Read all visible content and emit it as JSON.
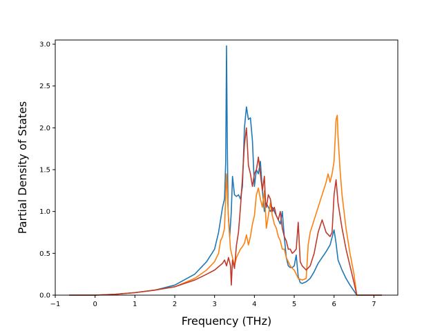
{
  "chart_data": {
    "type": "line",
    "title": "",
    "xlabel": "Frequency (THz)",
    "ylabel": "Partial Density of States",
    "xlim": [
      -1.0,
      7.6
    ],
    "ylim": [
      0.0,
      3.05
    ],
    "grid": false,
    "legend": "none",
    "xticks": [
      -1,
      0,
      1,
      2,
      3,
      4,
      5,
      6,
      7
    ],
    "yticks": [
      0.0,
      0.5,
      1.0,
      1.5,
      2.0,
      2.5,
      3.0
    ],
    "xtick_labels": [
      "−1",
      "0",
      "1",
      "2",
      "3",
      "4",
      "5",
      "6",
      "7"
    ],
    "ytick_labels": [
      "0.0",
      "0.5",
      "1.0",
      "1.5",
      "2.0",
      "2.5",
      "3.0"
    ],
    "series": [
      {
        "color": "#1f77b4",
        "x": [
          -0.65,
          0.0,
          0.5,
          1.0,
          1.5,
          2.0,
          2.5,
          2.8,
          3.0,
          3.1,
          3.2,
          3.25,
          3.28,
          3.3,
          3.32,
          3.34,
          3.38,
          3.42,
          3.45,
          3.5,
          3.55,
          3.6,
          3.65,
          3.7,
          3.75,
          3.8,
          3.85,
          3.9,
          3.95,
          4.0,
          4.05,
          4.1,
          4.15,
          4.2,
          4.25,
          4.3,
          4.35,
          4.4,
          4.45,
          4.5,
          4.55,
          4.6,
          4.65,
          4.7,
          4.75,
          4.8,
          4.85,
          4.9,
          4.95,
          5.0,
          5.05,
          5.1,
          5.15,
          5.2,
          5.3,
          5.4,
          5.5,
          5.6,
          5.7,
          5.8,
          5.9,
          6.0,
          6.05,
          6.1,
          6.2,
          6.3,
          6.4,
          6.5,
          6.57,
          7.2
        ],
        "y": [
          0.0,
          0.0,
          0.01,
          0.03,
          0.06,
          0.12,
          0.25,
          0.4,
          0.55,
          0.75,
          1.05,
          1.15,
          1.6,
          2.98,
          1.8,
          1.0,
          0.7,
          1.0,
          1.42,
          1.2,
          1.18,
          1.2,
          1.15,
          1.3,
          2.0,
          2.25,
          2.1,
          2.12,
          1.85,
          1.3,
          1.5,
          1.45,
          1.6,
          1.25,
          1.0,
          1.1,
          1.05,
          1.0,
          1.05,
          1.0,
          0.95,
          0.9,
          0.85,
          1.0,
          0.7,
          0.45,
          0.35,
          0.33,
          0.33,
          0.35,
          0.48,
          0.22,
          0.15,
          0.14,
          0.16,
          0.2,
          0.28,
          0.38,
          0.45,
          0.52,
          0.6,
          0.78,
          0.62,
          0.42,
          0.3,
          0.2,
          0.12,
          0.05,
          0.0,
          0.0
        ]
      },
      {
        "color": "#ff7f0e",
        "x": [
          -0.65,
          0.0,
          0.5,
          1.0,
          1.5,
          2.0,
          2.5,
          2.8,
          3.0,
          3.1,
          3.15,
          3.2,
          3.25,
          3.3,
          3.35,
          3.4,
          3.45,
          3.5,
          3.55,
          3.6,
          3.65,
          3.7,
          3.75,
          3.8,
          3.85,
          3.9,
          3.95,
          4.0,
          4.05,
          4.1,
          4.15,
          4.2,
          4.25,
          4.3,
          4.35,
          4.4,
          4.45,
          4.5,
          4.55,
          4.6,
          4.65,
          4.7,
          4.75,
          4.8,
          4.85,
          4.9,
          4.95,
          5.0,
          5.05,
          5.1,
          5.2,
          5.3,
          5.35,
          5.4,
          5.5,
          5.6,
          5.7,
          5.8,
          5.85,
          5.9,
          5.95,
          6.0,
          6.03,
          6.05,
          6.08,
          6.1,
          6.15,
          6.2,
          6.3,
          6.4,
          6.5,
          6.57,
          7.2
        ],
        "y": [
          0.0,
          0.0,
          0.01,
          0.03,
          0.06,
          0.1,
          0.2,
          0.3,
          0.4,
          0.5,
          0.65,
          0.7,
          0.8,
          1.45,
          0.9,
          0.55,
          0.45,
          0.35,
          0.45,
          0.5,
          0.55,
          0.58,
          0.62,
          0.72,
          0.6,
          0.7,
          0.85,
          0.95,
          1.2,
          1.28,
          1.15,
          1.05,
          1.25,
          0.8,
          0.95,
          1.1,
          0.95,
          0.85,
          0.8,
          0.7,
          0.65,
          0.55,
          0.55,
          0.45,
          0.4,
          0.35,
          0.32,
          0.3,
          0.25,
          0.2,
          0.18,
          0.2,
          0.6,
          0.75,
          0.9,
          1.05,
          1.2,
          1.35,
          1.45,
          1.35,
          1.45,
          1.6,
          1.9,
          2.1,
          2.15,
          1.9,
          1.5,
          1.2,
          0.8,
          0.5,
          0.25,
          0.0,
          0.0
        ]
      },
      {
        "color": "#c0392b",
        "x": [
          -0.65,
          0.0,
          0.5,
          1.0,
          1.5,
          2.0,
          2.5,
          2.8,
          3.0,
          3.2,
          3.25,
          3.3,
          3.35,
          3.4,
          3.42,
          3.45,
          3.5,
          3.55,
          3.6,
          3.65,
          3.7,
          3.75,
          3.8,
          3.85,
          3.9,
          3.95,
          4.0,
          4.05,
          4.1,
          4.15,
          4.2,
          4.25,
          4.28,
          4.3,
          4.35,
          4.4,
          4.45,
          4.5,
          4.55,
          4.6,
          4.65,
          4.7,
          4.75,
          4.8,
          4.85,
          4.9,
          4.95,
          5.0,
          5.05,
          5.1,
          5.15,
          5.2,
          5.3,
          5.4,
          5.5,
          5.6,
          5.7,
          5.8,
          5.9,
          5.95,
          6.0,
          6.05,
          6.1,
          6.2,
          6.3,
          6.4,
          6.5,
          6.57,
          7.2
        ],
        "y": [
          0.0,
          0.0,
          0.01,
          0.03,
          0.06,
          0.1,
          0.18,
          0.25,
          0.3,
          0.38,
          0.42,
          0.35,
          0.45,
          0.35,
          0.12,
          0.42,
          0.32,
          0.6,
          0.75,
          1.05,
          1.4,
          1.8,
          2.0,
          1.55,
          1.45,
          1.3,
          1.45,
          1.5,
          1.65,
          1.45,
          1.25,
          1.42,
          1.1,
          1.05,
          1.2,
          1.15,
          1.0,
          1.05,
          0.95,
          0.9,
          1.0,
          0.8,
          0.7,
          0.65,
          0.55,
          0.55,
          0.5,
          0.52,
          0.55,
          0.87,
          0.4,
          0.35,
          0.3,
          0.35,
          0.5,
          0.75,
          0.9,
          0.75,
          0.7,
          0.75,
          1.2,
          1.38,
          1.1,
          0.8,
          0.55,
          0.35,
          0.15,
          0.0,
          0.0
        ]
      }
    ]
  }
}
